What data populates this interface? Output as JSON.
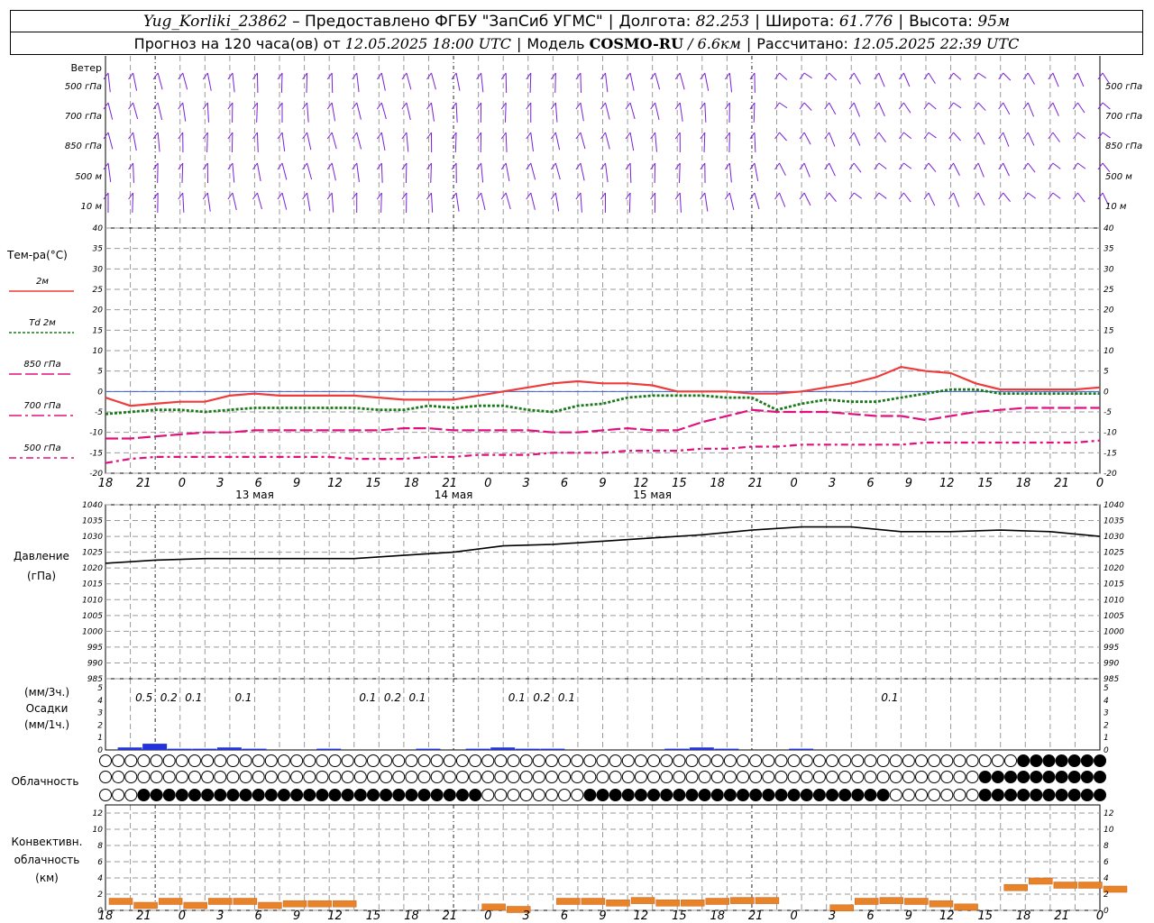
{
  "header": {
    "station": "Yug_Korliki_23862",
    "provider": "– Предоставлено ФГБУ \"ЗапСиб УГМС\"",
    "lon_label": "Долгота:",
    "lon": "82.253",
    "lat_label": "Широта:",
    "lat": "61.776",
    "alt_label": "Высота:",
    "alt": "95м",
    "forecast_label": "Прогноз на 120 часа(ов) от",
    "forecast_time": "12.05.2025 18:00 UTC",
    "model_label": "Модель",
    "model": "COSMO-RU",
    "model_res": "/ 6.6км",
    "calc_label": "Рассчитано:",
    "calc_time": "12.05.2025 22:39 UTC"
  },
  "time_axis": {
    "hour_ticks": [
      "18",
      "21",
      "0",
      "3",
      "6",
      "9",
      "12",
      "15",
      "18",
      "21",
      "0",
      "3",
      "6",
      "9",
      "12",
      "15",
      "18",
      "21",
      "0",
      "3",
      "6",
      "9",
      "12",
      "15",
      "18",
      "21",
      "0"
    ],
    "day_labels": [
      "13 мая",
      "14 мая",
      "15 мая"
    ]
  },
  "wind_panel": {
    "title": "Ветер",
    "levels": [
      "500 гПа",
      "700 гПа",
      "850 гПа",
      "500 м",
      "10 м"
    ],
    "color": "#7b1fd6"
  },
  "temp_panel": {
    "title": "Тем-ра(°C)",
    "yticks": [
      "40",
      "35",
      "30",
      "25",
      "20",
      "15",
      "10",
      "5",
      "0",
      "-5",
      "-10",
      "-15",
      "-20"
    ],
    "legend": [
      {
        "label": "2м",
        "color": "#ee3b3b"
      },
      {
        "label": "Td 2м",
        "color": "#1a7a1a"
      },
      {
        "label": "850 гПа",
        "color": "#e0117f"
      },
      {
        "label": "700 гПа",
        "color": "#e0117f"
      },
      {
        "label": "500 гПа",
        "color": "#e0117f"
      }
    ]
  },
  "pressure_panel": {
    "title": "Давление",
    "unit": "(гПа)",
    "yticks": [
      "1040",
      "1035",
      "1030",
      "1025",
      "1020",
      "1015",
      "1010",
      "1005",
      "1000",
      "995",
      "990",
      "985"
    ]
  },
  "precip_panel": {
    "title_1": "(мм/3ч.)",
    "title_2": "Осадки",
    "title_3": "(мм/1ч.)",
    "yticks": [
      "5",
      "4",
      "3",
      "2",
      "1",
      "0"
    ],
    "labels_3h": [
      "0.5",
      "0.2",
      "0.1",
      "0.1",
      "0.1",
      "0.2",
      "0.1",
      "0.1",
      "0.2",
      "0.1",
      "0.1"
    ]
  },
  "cloud_panel": {
    "title": "Облачность"
  },
  "conv_panel": {
    "title_1": "Конвективн.",
    "title_2": "облачность",
    "title_3": "(км)",
    "yticks": [
      "12",
      "10",
      "8",
      "6",
      "4",
      "2",
      "0"
    ]
  },
  "chart_data": [
    {
      "type": "line",
      "name": "temperature",
      "x_hours": [
        0,
        3,
        6,
        9,
        12,
        15,
        18,
        21,
        24,
        27,
        30,
        33,
        36,
        39,
        42,
        45,
        48,
        51,
        54,
        57,
        60,
        63,
        66,
        69,
        72,
        75,
        78,
        81,
        84,
        87,
        90,
        93,
        96,
        99,
        102,
        105,
        108,
        111,
        114,
        117,
        120
      ],
      "ylim": [
        -20,
        40
      ],
      "series": [
        {
          "name": "2м",
          "values": [
            -1.5,
            -3.5,
            -3,
            -2.5,
            -2.5,
            -1,
            -0.5,
            -1,
            -1,
            -1,
            -1,
            -1.5,
            -2,
            -2,
            -2,
            -1,
            0,
            1,
            2,
            2.5,
            2,
            2,
            1.5,
            0,
            0,
            0,
            -0.5,
            -0.5,
            0,
            1,
            2,
            3.5,
            6,
            5,
            4.5,
            2,
            0.5,
            0.5,
            0.5,
            0.5,
            1
          ]
        },
        {
          "name": "Td 2м",
          "values": [
            -5.5,
            -5,
            -4.5,
            -4.5,
            -5,
            -4.5,
            -4,
            -4,
            -4,
            -4,
            -4,
            -4.5,
            -4.5,
            -3.5,
            -4,
            -3.5,
            -3.5,
            -4.5,
            -5,
            -3.5,
            -3,
            -1.5,
            -1,
            -1,
            -1,
            -1.5,
            -1.5,
            -4.5,
            -3,
            -2,
            -2.5,
            -2.5,
            -1.5,
            -0.5,
            0.5,
            0.5,
            -0.5,
            -0.5,
            -0.5,
            -0.5,
            -0.5
          ]
        },
        {
          "name": "850 гПа",
          "values": [
            -11.5,
            -11.5,
            -11,
            -10.5,
            -10,
            -10,
            -9.5,
            -9.5,
            -9.5,
            -9.5,
            -9.5,
            -9.5,
            -9,
            -9,
            -9.5,
            -9.5,
            -9.5,
            -9.5,
            -10,
            -10,
            -9.5,
            -9,
            -9.5,
            -9.5,
            -7.5,
            -6,
            -4.5,
            -5,
            -5,
            -5,
            -5.5,
            -6,
            -6,
            -7,
            -6,
            -5,
            -4.5,
            -4,
            -4,
            -4,
            -4
          ]
        },
        {
          "name": "700 гПа",
          "values": null
        },
        {
          "name": "500 гПа",
          "values": [
            -17.5,
            -16.5,
            -16,
            -16,
            -16,
            -16,
            -16,
            -16,
            -16,
            -16,
            -16.5,
            -16.5,
            -16.5,
            -16,
            -16,
            -15.5,
            -15.5,
            -15.5,
            -15,
            -15,
            -15,
            -14.5,
            -14.5,
            -14.5,
            -14,
            -14,
            -13.5,
            -13.5,
            -13,
            -13,
            -13,
            -13,
            -13,
            -12.5,
            -12.5,
            -12.5,
            -12.5,
            -12.5,
            -12.5,
            -12.5,
            -12
          ]
        }
      ]
    },
    {
      "type": "line",
      "name": "pressure",
      "x_hours": [
        0,
        6,
        12,
        18,
        24,
        30,
        36,
        42,
        48,
        54,
        60,
        66,
        72,
        78,
        84,
        90,
        96,
        102,
        108,
        114,
        120
      ],
      "ylim": [
        985,
        1040
      ],
      "series": [
        {
          "name": "Давление",
          "values": [
            1021.5,
            1022.5,
            1023,
            1023,
            1023,
            1023,
            1024,
            1025,
            1027,
            1027.5,
            1028.5,
            1029.5,
            1030.5,
            1032,
            1033,
            1033,
            1031.5,
            1031.5,
            1032,
            1031.5,
            1030
          ]
        }
      ]
    },
    {
      "type": "bar",
      "name": "precipitation",
      "x_hours": [
        3,
        6,
        9,
        12,
        15,
        18,
        21,
        27,
        30,
        33,
        36,
        39,
        42,
        45,
        48,
        51,
        54,
        57,
        60,
        63,
        66,
        69,
        72,
        75,
        78,
        84,
        90,
        96,
        99,
        102,
        105,
        108,
        111,
        114,
        117,
        120
      ],
      "ylim": [
        0,
        5
      ],
      "series": [
        {
          "name": "мм/1ч",
          "values": [
            0.2,
            0.5,
            0.1,
            0.1,
            0.2,
            0.1,
            0,
            0.1,
            0,
            0,
            0,
            0.1,
            0,
            0.1,
            0.2,
            0.1,
            0.1,
            0,
            0,
            0,
            0,
            0.1,
            0.2,
            0.1,
            0,
            0.1,
            0,
            0,
            0,
            0,
            0,
            0,
            0,
            0,
            0,
            0
          ]
        }
      ]
    },
    {
      "type": "bar",
      "name": "convective_cloud",
      "x_hours": [
        0,
        3,
        6,
        9,
        12,
        15,
        18,
        21,
        24,
        27,
        30,
        33,
        36,
        39,
        42,
        45,
        48,
        51,
        54,
        57,
        60,
        63,
        66,
        69,
        72,
        75,
        78,
        81,
        84,
        87,
        90,
        93,
        96,
        99,
        102,
        105,
        108,
        111,
        114,
        117,
        120
      ],
      "ylim": [
        0,
        13
      ],
      "series": [
        {
          "name": "км",
          "values": [
            1.5,
            1,
            1.5,
            1,
            1.5,
            1.5,
            1,
            1.2,
            1.2,
            1.2,
            0,
            0,
            0,
            0,
            0,
            0.8,
            0.5,
            0,
            1.5,
            1.5,
            1.3,
            1.6,
            1.3,
            1.3,
            1.5,
            1.6,
            1.6,
            0,
            0,
            0.7,
            1.5,
            1.6,
            1.5,
            1.2,
            0.8,
            0,
            3.2,
            4,
            3.5,
            3.5,
            3
          ]
        }
      ]
    }
  ]
}
